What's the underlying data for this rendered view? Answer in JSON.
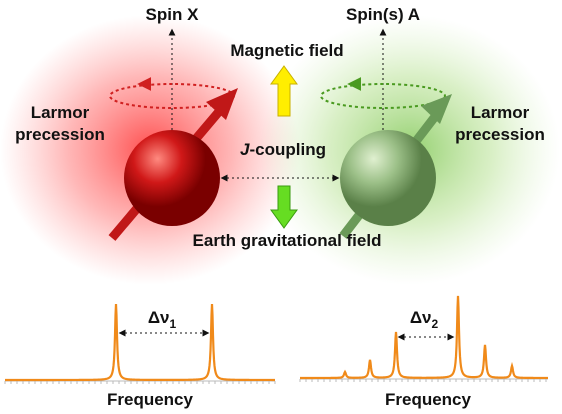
{
  "spin_x": {
    "label": "Spin X"
  },
  "spin_a": {
    "label": "Spin(s) A"
  },
  "magnetic_field": {
    "label": "Magnetic field"
  },
  "gravity": {
    "label": "Earth gravitational field"
  },
  "coupling": {
    "italic": "J",
    "rest": "-coupling"
  },
  "larmor_left": {
    "lines": [
      "Larmor",
      "precession"
    ]
  },
  "larmor_right": {
    "lines": [
      "Larmor",
      "precession"
    ]
  },
  "spectra": [
    {
      "delta": {
        "symbol": "Δν",
        "subscript": "1"
      },
      "axis_label": "Frequency"
    },
    {
      "delta": {
        "symbol": "Δν",
        "subscript": "2"
      },
      "axis_label": "Frequency"
    }
  ]
}
